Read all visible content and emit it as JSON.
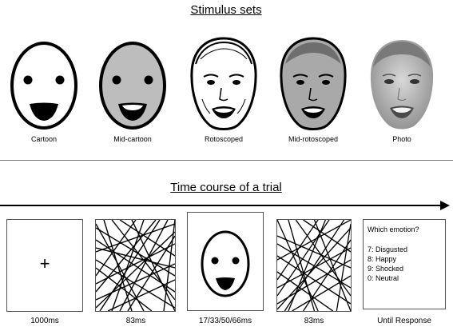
{
  "stimulus_sets": {
    "title": "Stimulus sets",
    "faces": [
      {
        "label": "Cartoon",
        "style": "cartoon",
        "fill": "#ffffff"
      },
      {
        "label": "Mid-cartoon",
        "style": "cartoon",
        "fill": "#bdbdbd"
      },
      {
        "label": "Rotoscoped",
        "style": "roto",
        "fill": "#ffffff"
      },
      {
        "label": "Mid-rotoscoped",
        "style": "roto",
        "fill": "#a9a9a9"
      },
      {
        "label": "Photo",
        "style": "photo",
        "fill": "#c8c8c8"
      }
    ]
  },
  "time_course": {
    "title": "Time course of a trial",
    "frames": [
      {
        "kind": "fixation",
        "content": "+",
        "duration": "1000ms"
      },
      {
        "kind": "mask",
        "duration": "83ms"
      },
      {
        "kind": "face",
        "duration": "17/33/50/66ms"
      },
      {
        "kind": "mask",
        "duration": "83ms"
      },
      {
        "kind": "response",
        "duration": "Until Response"
      }
    ],
    "response": {
      "question": "Which emotion?",
      "options": [
        "7: Disgusted",
        "8: Happy",
        "9: Shocked",
        "0: Neutral"
      ]
    }
  }
}
